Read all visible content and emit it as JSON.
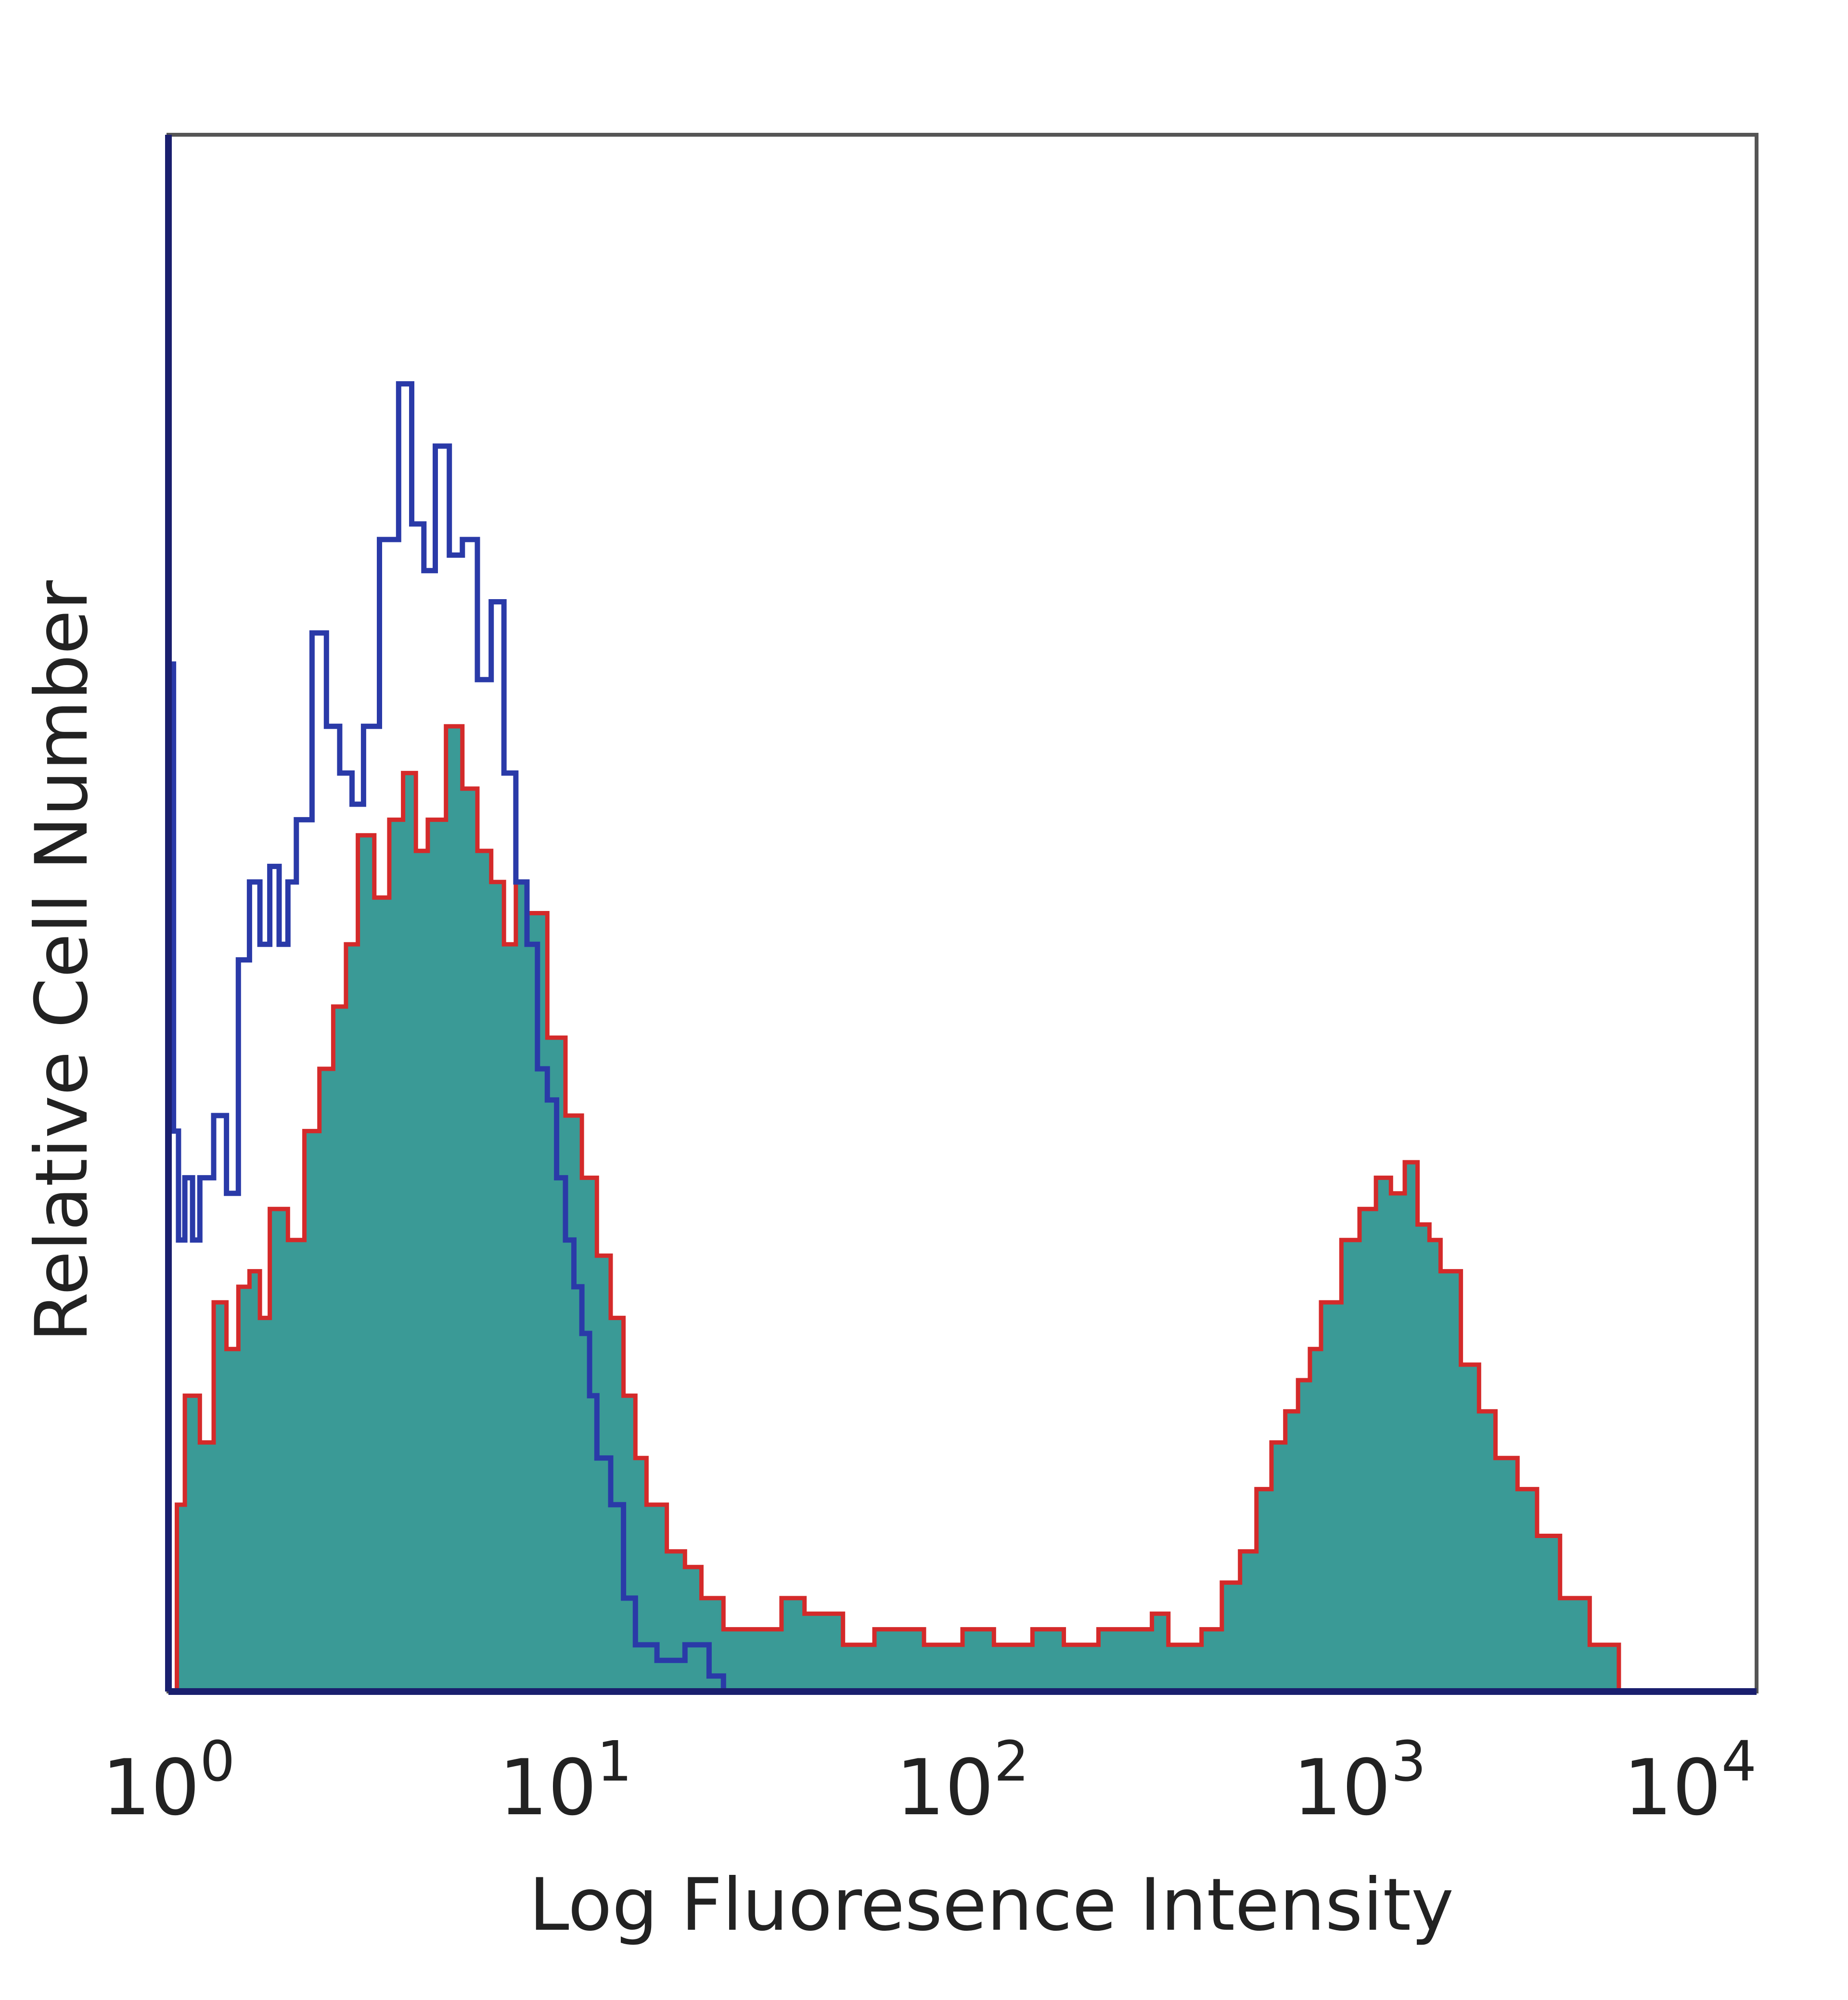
{
  "chart_data": {
    "type": "area",
    "title": "",
    "xlabel": "Log Fluoresence Intensity",
    "ylabel": "Relative Cell Number",
    "x_scale": "log",
    "xlim": [
      1,
      10000
    ],
    "ylim": [
      0,
      1
    ],
    "x_ticks": [
      {
        "value": 1,
        "base": "10",
        "exp": "0"
      },
      {
        "value": 10,
        "base": "10",
        "exp": "1"
      },
      {
        "value": 100,
        "base": "10",
        "exp": "2"
      },
      {
        "value": 1000,
        "base": "10",
        "exp": "3"
      },
      {
        "value": 10000,
        "base": "10",
        "exp": "4"
      }
    ],
    "grid": false,
    "legend": "none",
    "colors": {
      "filled": "#3a9a96",
      "filled_outline": "#d42a2a",
      "blue_line": "#2a3aa8",
      "axes": "#1a1f6e",
      "frame": "#555555"
    },
    "series": [
      {
        "style": "filled-area",
        "points": [
          [
            1.0,
            0.0
          ],
          [
            1.05,
            0.12
          ],
          [
            1.1,
            0.19
          ],
          [
            1.2,
            0.16
          ],
          [
            1.3,
            0.25
          ],
          [
            1.4,
            0.22
          ],
          [
            1.5,
            0.26
          ],
          [
            1.6,
            0.27
          ],
          [
            1.7,
            0.24
          ],
          [
            1.8,
            0.31
          ],
          [
            2.0,
            0.29
          ],
          [
            2.2,
            0.36
          ],
          [
            2.4,
            0.4
          ],
          [
            2.6,
            0.44
          ],
          [
            2.8,
            0.48
          ],
          [
            3.0,
            0.55
          ],
          [
            3.3,
            0.51
          ],
          [
            3.6,
            0.56
          ],
          [
            3.9,
            0.59
          ],
          [
            4.2,
            0.54
          ],
          [
            4.5,
            0.56
          ],
          [
            5.0,
            0.62
          ],
          [
            5.5,
            0.58
          ],
          [
            6.0,
            0.54
          ],
          [
            6.5,
            0.52
          ],
          [
            7.0,
            0.48
          ],
          [
            7.5,
            0.52
          ],
          [
            8.0,
            0.5
          ],
          [
            9.0,
            0.42
          ],
          [
            10.0,
            0.37
          ],
          [
            11.0,
            0.33
          ],
          [
            12.0,
            0.28
          ],
          [
            13.0,
            0.24
          ],
          [
            14.0,
            0.19
          ],
          [
            15.0,
            0.15
          ],
          [
            16.0,
            0.12
          ],
          [
            18.0,
            0.09
          ],
          [
            20.0,
            0.08
          ],
          [
            22.0,
            0.06
          ],
          [
            25.0,
            0.04
          ],
          [
            30.0,
            0.04
          ],
          [
            35.0,
            0.06
          ],
          [
            40.0,
            0.05
          ],
          [
            45.0,
            0.05
          ],
          [
            50.0,
            0.03
          ],
          [
            60.0,
            0.04
          ],
          [
            70.0,
            0.04
          ],
          [
            80.0,
            0.03
          ],
          [
            100.0,
            0.04
          ],
          [
            120.0,
            0.03
          ],
          [
            150.0,
            0.04
          ],
          [
            180.0,
            0.03
          ],
          [
            220.0,
            0.04
          ],
          [
            260.0,
            0.04
          ],
          [
            300.0,
            0.05
          ],
          [
            330.0,
            0.03
          ],
          [
            400.0,
            0.04
          ],
          [
            450.0,
            0.07
          ],
          [
            500.0,
            0.09
          ],
          [
            550.0,
            0.13
          ],
          [
            600.0,
            0.16
          ],
          [
            650.0,
            0.18
          ],
          [
            700.0,
            0.2
          ],
          [
            750.0,
            0.22
          ],
          [
            800.0,
            0.25
          ],
          [
            900.0,
            0.29
          ],
          [
            1000.0,
            0.31
          ],
          [
            1100.0,
            0.33
          ],
          [
            1200.0,
            0.32
          ],
          [
            1300.0,
            0.34
          ],
          [
            1400.0,
            0.3
          ],
          [
            1500.0,
            0.29
          ],
          [
            1600.0,
            0.27
          ],
          [
            1800.0,
            0.21
          ],
          [
            2000.0,
            0.18
          ],
          [
            2200.0,
            0.15
          ],
          [
            2500.0,
            0.13
          ],
          [
            2800.0,
            0.1
          ],
          [
            3200.0,
            0.06
          ],
          [
            3800.0,
            0.03
          ],
          [
            4500.0,
            0.0
          ]
        ]
      },
      {
        "style": "line",
        "points": [
          [
            1.0,
            0.66
          ],
          [
            1.03,
            0.36
          ],
          [
            1.06,
            0.29
          ],
          [
            1.1,
            0.33
          ],
          [
            1.15,
            0.29
          ],
          [
            1.2,
            0.33
          ],
          [
            1.3,
            0.37
          ],
          [
            1.4,
            0.32
          ],
          [
            1.5,
            0.47
          ],
          [
            1.6,
            0.52
          ],
          [
            1.7,
            0.48
          ],
          [
            1.8,
            0.53
          ],
          [
            1.9,
            0.48
          ],
          [
            2.0,
            0.52
          ],
          [
            2.1,
            0.56
          ],
          [
            2.3,
            0.68
          ],
          [
            2.5,
            0.62
          ],
          [
            2.7,
            0.59
          ],
          [
            2.9,
            0.57
          ],
          [
            3.1,
            0.62
          ],
          [
            3.4,
            0.74
          ],
          [
            3.8,
            0.84
          ],
          [
            4.1,
            0.75
          ],
          [
            4.4,
            0.72
          ],
          [
            4.7,
            0.8
          ],
          [
            5.1,
            0.73
          ],
          [
            5.5,
            0.74
          ],
          [
            6.0,
            0.65
          ],
          [
            6.5,
            0.7
          ],
          [
            7.0,
            0.59
          ],
          [
            7.5,
            0.52
          ],
          [
            8.0,
            0.48
          ],
          [
            8.5,
            0.4
          ],
          [
            9.0,
            0.38
          ],
          [
            9.5,
            0.33
          ],
          [
            10.0,
            0.29
          ],
          [
            10.5,
            0.26
          ],
          [
            11.0,
            0.23
          ],
          [
            11.5,
            0.19
          ],
          [
            12.0,
            0.15
          ],
          [
            13.0,
            0.12
          ],
          [
            14.0,
            0.06
          ],
          [
            15.0,
            0.03
          ],
          [
            17.0,
            0.02
          ],
          [
            20.0,
            0.03
          ],
          [
            23.0,
            0.01
          ],
          [
            25.0,
            0.0
          ]
        ]
      }
    ]
  }
}
